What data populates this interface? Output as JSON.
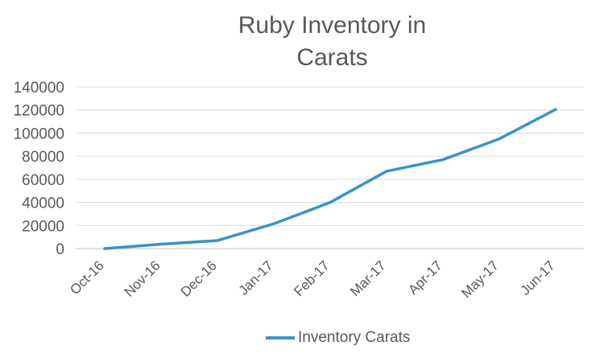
{
  "chart_data": {
    "type": "line",
    "title_lines": [
      "Ruby Inventory in",
      "Carats"
    ],
    "categories": [
      "Oct-16",
      "Nov-16",
      "Dec-16",
      "Jan-17",
      "Feb-17",
      "Mar-17",
      "Apr-17",
      "May-17",
      "Jun-17"
    ],
    "series": [
      {
        "name": "Inventory Carats",
        "color": "#3a93c6",
        "values": [
          0,
          3800,
          7000,
          21500,
          40000,
          67000,
          77000,
          95000,
          120500
        ]
      }
    ],
    "ylim": [
      0,
      140000
    ],
    "yticks": [
      "0",
      "20000",
      "40000",
      "60000",
      "80000",
      "100000",
      "120000",
      "140000"
    ],
    "grid": true,
    "legend_position": "bottom"
  }
}
